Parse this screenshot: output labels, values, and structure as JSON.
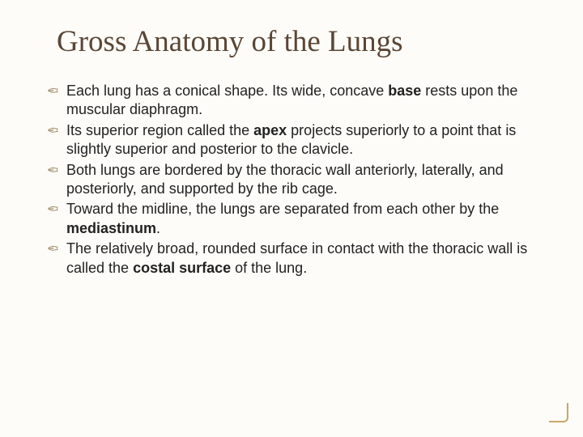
{
  "title_fontsize": 37,
  "body_fontsize": 18,
  "colors": {
    "background": "#fdfcf8",
    "title": "#5b4636",
    "body_text": "#222222",
    "bullet": "#9b8560",
    "corner_accent": "#c9a86a"
  },
  "slide": {
    "title": "Gross Anatomy of the Lungs",
    "bullets": [
      {
        "runs": [
          {
            "text": "Each lung has a conical shape. Its wide, concave ",
            "bold": false
          },
          {
            "text": "base",
            "bold": true
          },
          {
            "text": " rests upon the muscular diaphragm.",
            "bold": false
          }
        ]
      },
      {
        "runs": [
          {
            "text": "Its superior region called the ",
            "bold": false
          },
          {
            "text": "apex",
            "bold": true
          },
          {
            "text": " projects superiorly to a point that is slightly superior and posterior to the clavicle.",
            "bold": false
          }
        ]
      },
      {
        "runs": [
          {
            "text": "Both lungs are bordered by the thoracic wall anteriorly, laterally, and posteriorly, and supported by the rib cage.",
            "bold": false
          }
        ]
      },
      {
        "runs": [
          {
            "text": "Toward the midline, the lungs are separated from each other by the ",
            "bold": false
          },
          {
            "text": "mediastinum",
            "bold": true
          },
          {
            "text": ".",
            "bold": false
          }
        ]
      },
      {
        "runs": [
          {
            "text": "The relatively broad, rounded surface in contact with the thoracic wall is called the ",
            "bold": false
          },
          {
            "text": "costal surface",
            "bold": true
          },
          {
            "text": " of the lung.",
            "bold": false
          }
        ]
      }
    ]
  }
}
